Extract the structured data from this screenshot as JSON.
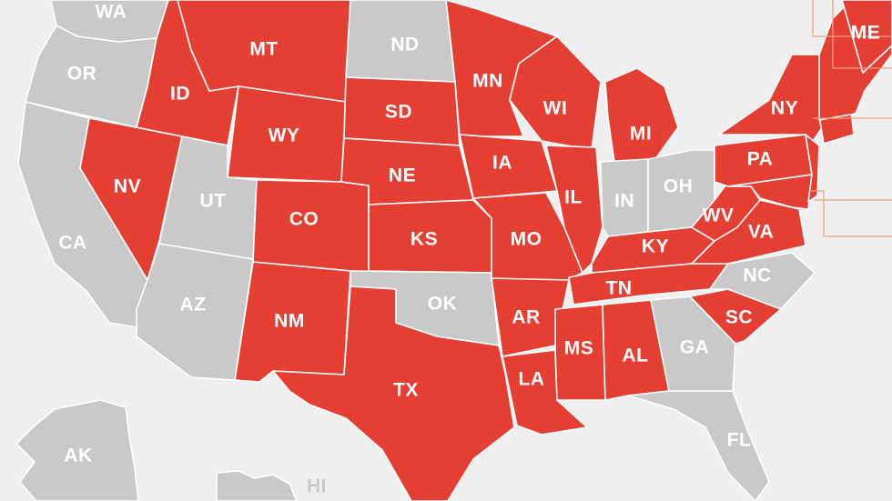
{
  "colors": {
    "highlighted": "#e53f33",
    "other": "#c9c9c9",
    "background": "#efefef",
    "label": "#ffffff"
  },
  "states": [
    {
      "id": "WA",
      "label": "WA",
      "highlighted": false
    },
    {
      "id": "OR",
      "label": "OR",
      "highlighted": false
    },
    {
      "id": "CA",
      "label": "CA",
      "highlighted": false
    },
    {
      "id": "ID",
      "label": "ID",
      "highlighted": true
    },
    {
      "id": "NV",
      "label": "NV",
      "highlighted": true
    },
    {
      "id": "MT",
      "label": "MT",
      "highlighted": true
    },
    {
      "id": "WY",
      "label": "WY",
      "highlighted": true
    },
    {
      "id": "UT",
      "label": "UT",
      "highlighted": false
    },
    {
      "id": "AZ",
      "label": "AZ",
      "highlighted": false
    },
    {
      "id": "CO",
      "label": "CO",
      "highlighted": true
    },
    {
      "id": "NM",
      "label": "NM",
      "highlighted": true
    },
    {
      "id": "ND",
      "label": "ND",
      "highlighted": false
    },
    {
      "id": "SD",
      "label": "SD",
      "highlighted": true
    },
    {
      "id": "NE",
      "label": "NE",
      "highlighted": true
    },
    {
      "id": "KS",
      "label": "KS",
      "highlighted": true
    },
    {
      "id": "OK",
      "label": "OK",
      "highlighted": false
    },
    {
      "id": "TX",
      "label": "TX",
      "highlighted": true
    },
    {
      "id": "MN",
      "label": "MN",
      "highlighted": true
    },
    {
      "id": "IA",
      "label": "IA",
      "highlighted": true
    },
    {
      "id": "MO",
      "label": "MO",
      "highlighted": true
    },
    {
      "id": "AR",
      "label": "AR",
      "highlighted": true
    },
    {
      "id": "LA",
      "label": "LA",
      "highlighted": true
    },
    {
      "id": "WI",
      "label": "WI",
      "highlighted": true
    },
    {
      "id": "IL",
      "label": "IL",
      "highlighted": true
    },
    {
      "id": "MI",
      "label": "MI",
      "highlighted": true
    },
    {
      "id": "IN",
      "label": "IN",
      "highlighted": false
    },
    {
      "id": "OH",
      "label": "OH",
      "highlighted": false
    },
    {
      "id": "KY",
      "label": "KY",
      "highlighted": true
    },
    {
      "id": "TN",
      "label": "TN",
      "highlighted": true
    },
    {
      "id": "MS",
      "label": "MS",
      "highlighted": true
    },
    {
      "id": "AL",
      "label": "AL",
      "highlighted": true
    },
    {
      "id": "GA",
      "label": "GA",
      "highlighted": false
    },
    {
      "id": "FL",
      "label": "FL",
      "highlighted": false
    },
    {
      "id": "SC",
      "label": "SC",
      "highlighted": true
    },
    {
      "id": "NC",
      "label": "NC",
      "highlighted": false
    },
    {
      "id": "VA",
      "label": "VA",
      "highlighted": true
    },
    {
      "id": "WV",
      "label": "WV",
      "highlighted": true
    },
    {
      "id": "PA",
      "label": "PA",
      "highlighted": true
    },
    {
      "id": "NY",
      "label": "NY",
      "highlighted": true
    },
    {
      "id": "ME",
      "label": "ME",
      "highlighted": true
    },
    {
      "id": "AK",
      "label": "AK",
      "highlighted": false
    },
    {
      "id": "HI",
      "label": "HI",
      "highlighted": false
    }
  ]
}
